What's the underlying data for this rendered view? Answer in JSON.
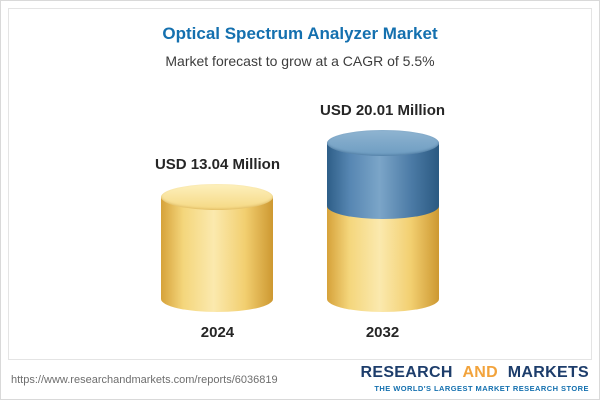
{
  "chart_data": {
    "type": "bar",
    "bar_style": "3d-cylinder",
    "title": "Optical Spectrum Analyzer Market",
    "subtitle": "Market forecast to grow at a CAGR of 5.5%",
    "categories": [
      "2024",
      "2032"
    ],
    "values": [
      13.04,
      20.01
    ],
    "value_labels": [
      "USD 13.04 Million",
      "USD 20.01 Million"
    ],
    "unit": "USD Million",
    "cagr_pct": 5.5,
    "ylim": [
      0,
      22
    ],
    "grid": false,
    "legend": "none",
    "colors": {
      "base_segment": "#f2cf70",
      "growth_segment": "#4c7ba6",
      "title": "#1470af"
    }
  },
  "footer": {
    "url": "https://www.researchandmarkets.com/reports/6036819",
    "logo": {
      "research": "RESEARCH",
      "and": "AND",
      "markets": "MARKETS",
      "tagline": "THE WORLD'S LARGEST MARKET RESEARCH STORE"
    }
  }
}
